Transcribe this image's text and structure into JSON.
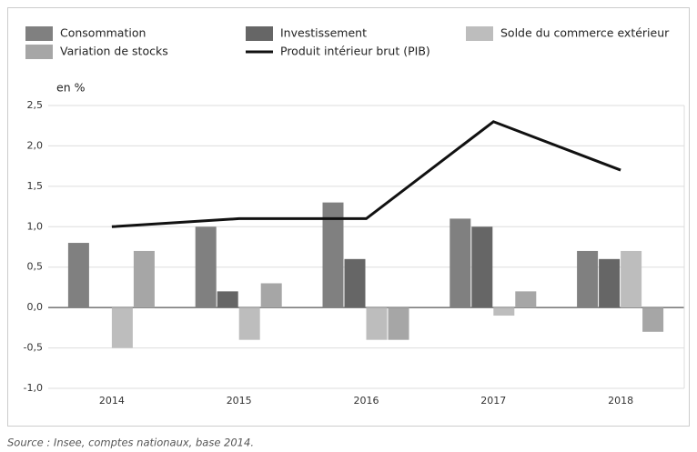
{
  "chart_data": {
    "type": "bar",
    "y_label": "en %",
    "source": "Source : Insee, comptes nationaux, base 2014.",
    "categories": [
      "2014",
      "2015",
      "2016",
      "2017",
      "2018"
    ],
    "series": [
      {
        "name": "Consommation",
        "color": "#808080",
        "values": [
          0.8,
          1.0,
          1.3,
          1.1,
          0.7
        ]
      },
      {
        "name": "Investissement",
        "color": "#666666",
        "values": [
          0.0,
          0.2,
          0.6,
          1.0,
          0.6
        ]
      },
      {
        "name": "Solde du commerce extérieur",
        "color": "#bdbdbd",
        "values": [
          -0.5,
          -0.4,
          -0.4,
          -0.1,
          0.7
        ]
      },
      {
        "name": "Variation de stocks",
        "color": "#a6a6a6",
        "values": [
          0.7,
          0.3,
          -0.4,
          0.2,
          -0.3
        ]
      },
      {
        "name": "Produit intérieur brut (PIB)",
        "color": "#111111",
        "type": "line",
        "values": [
          1.0,
          1.1,
          1.1,
          2.3,
          1.7
        ]
      }
    ],
    "ylim": [
      -1.0,
      2.5
    ],
    "yticks": [
      {
        "value": -1.0,
        "label": "-1,0"
      },
      {
        "value": -0.5,
        "label": "-0,5"
      },
      {
        "value": 0.0,
        "label": "0,0"
      },
      {
        "value": 0.5,
        "label": "0,5"
      },
      {
        "value": 1.0,
        "label": "1,0"
      },
      {
        "value": 1.5,
        "label": "1,5"
      },
      {
        "value": 2.0,
        "label": "2,0"
      },
      {
        "value": 2.5,
        "label": "2,5"
      }
    ],
    "grid": true
  }
}
